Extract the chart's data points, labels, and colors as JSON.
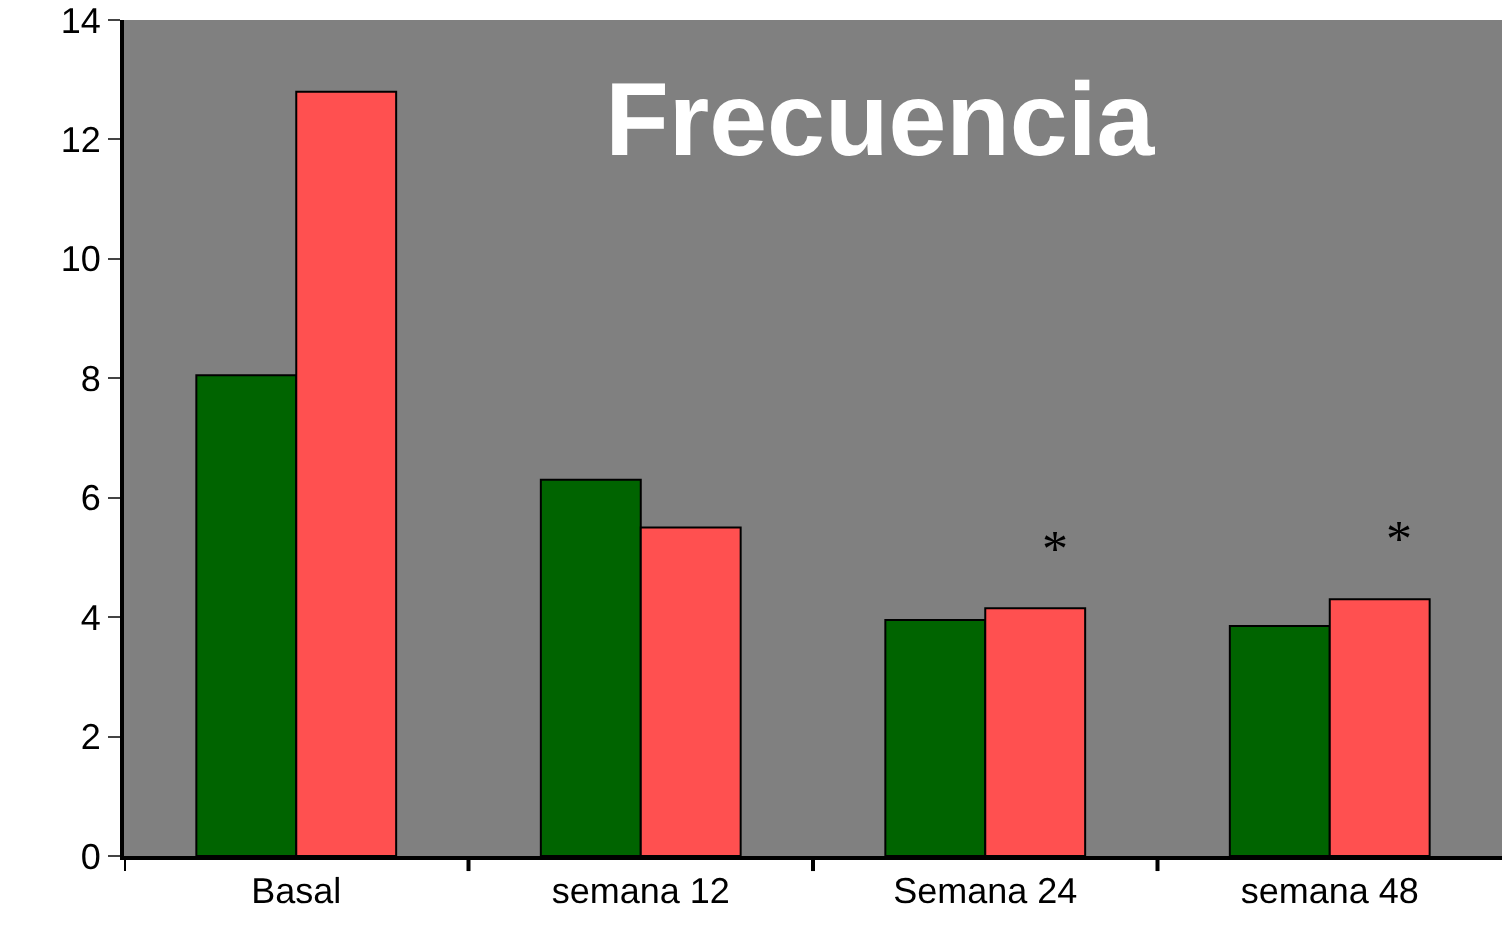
{
  "chart_data": {
    "type": "bar",
    "title": "Frecuencia",
    "categories": [
      "Basal",
      "semana 12",
      "Semana 24",
      "semana 48"
    ],
    "series": [
      {
        "color": "#006400",
        "values": [
          8.05,
          6.3,
          3.95,
          3.85
        ]
      },
      {
        "color": "#ff5050",
        "values": [
          12.8,
          5.5,
          4.15,
          4.3
        ]
      }
    ],
    "ylim": [
      0,
      14
    ],
    "yticks": [
      0,
      2,
      4,
      6,
      8,
      10,
      12,
      14
    ],
    "annotations": [
      {
        "text": "*",
        "x": "Semana 24",
        "y": 4.15
      },
      {
        "text": "*",
        "x": "semana 48",
        "y": 4.3
      }
    ]
  }
}
